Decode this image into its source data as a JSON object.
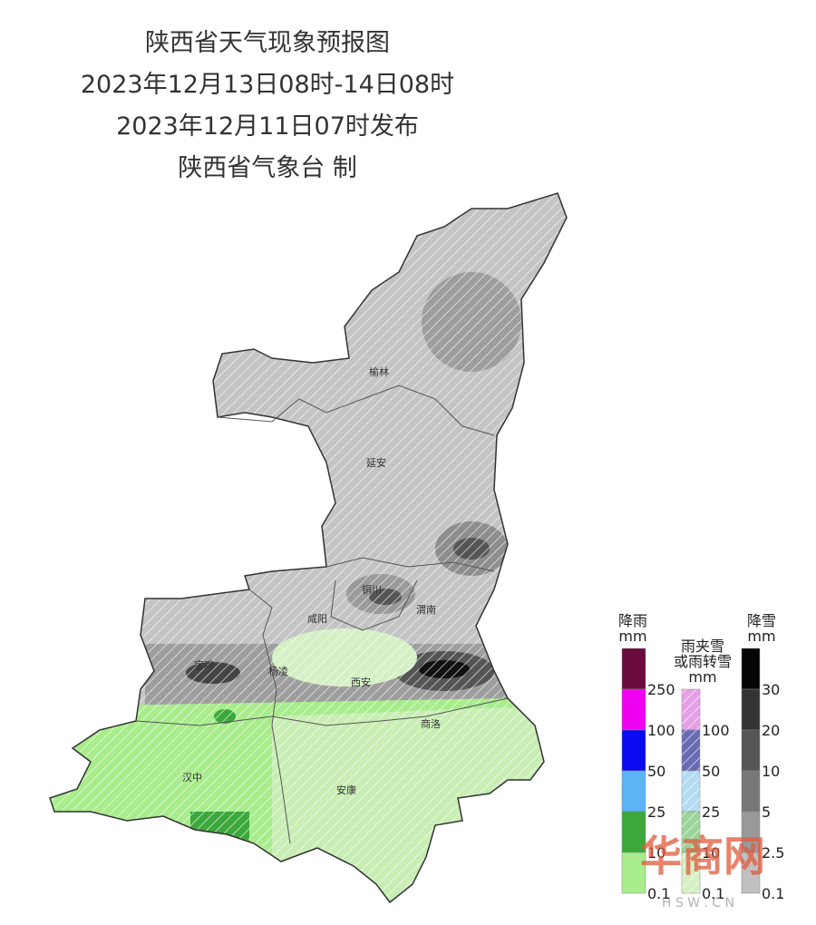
{
  "header": {
    "lines": [
      "陕西省天气现象预报图",
      "2023年12月13日08时-14日08时",
      "2023年12月11日07时发布",
      "陕西省气象台 制"
    ]
  },
  "cities": [
    {
      "label": "榆林"
    },
    {
      "label": "延安"
    },
    {
      "label": "铜川"
    },
    {
      "label": "渭南"
    },
    {
      "label": "咸阳"
    },
    {
      "label": "宝鸡"
    },
    {
      "label": "杨凌"
    },
    {
      "label": "西安"
    },
    {
      "label": "商洛"
    },
    {
      "label": "汉中"
    },
    {
      "label": "安康"
    }
  ],
  "legend": [
    {
      "title": [
        "降雨",
        "mm"
      ],
      "colors": [
        "#6b0a3c",
        "#f000f0",
        "#0a0af0",
        "#5ab4f5",
        "#3ca83c",
        "#a8ec8c"
      ],
      "labels": [
        250,
        100,
        50,
        25,
        10,
        0.1
      ]
    },
    {
      "title": [
        "雨夹雪",
        "或雨转雪",
        "mm"
      ],
      "colors": [
        "#e6a0e6",
        "#6a6ab4",
        "#b4dcf0",
        "#9ad49a",
        "#d4f0c4"
      ],
      "labels": [
        100,
        50,
        25,
        10,
        0.1
      ]
    },
    {
      "title": [
        "降雪",
        "mm"
      ],
      "colors": [
        "#050505",
        "#333333",
        "#555555",
        "#777777",
        "#999999",
        "#c0c0c0"
      ],
      "labels": [
        30,
        20,
        10,
        5,
        2.5,
        0.1
      ]
    }
  ],
  "watermark": {
    "logo": "华商网",
    "url": "H S W . C N"
  }
}
